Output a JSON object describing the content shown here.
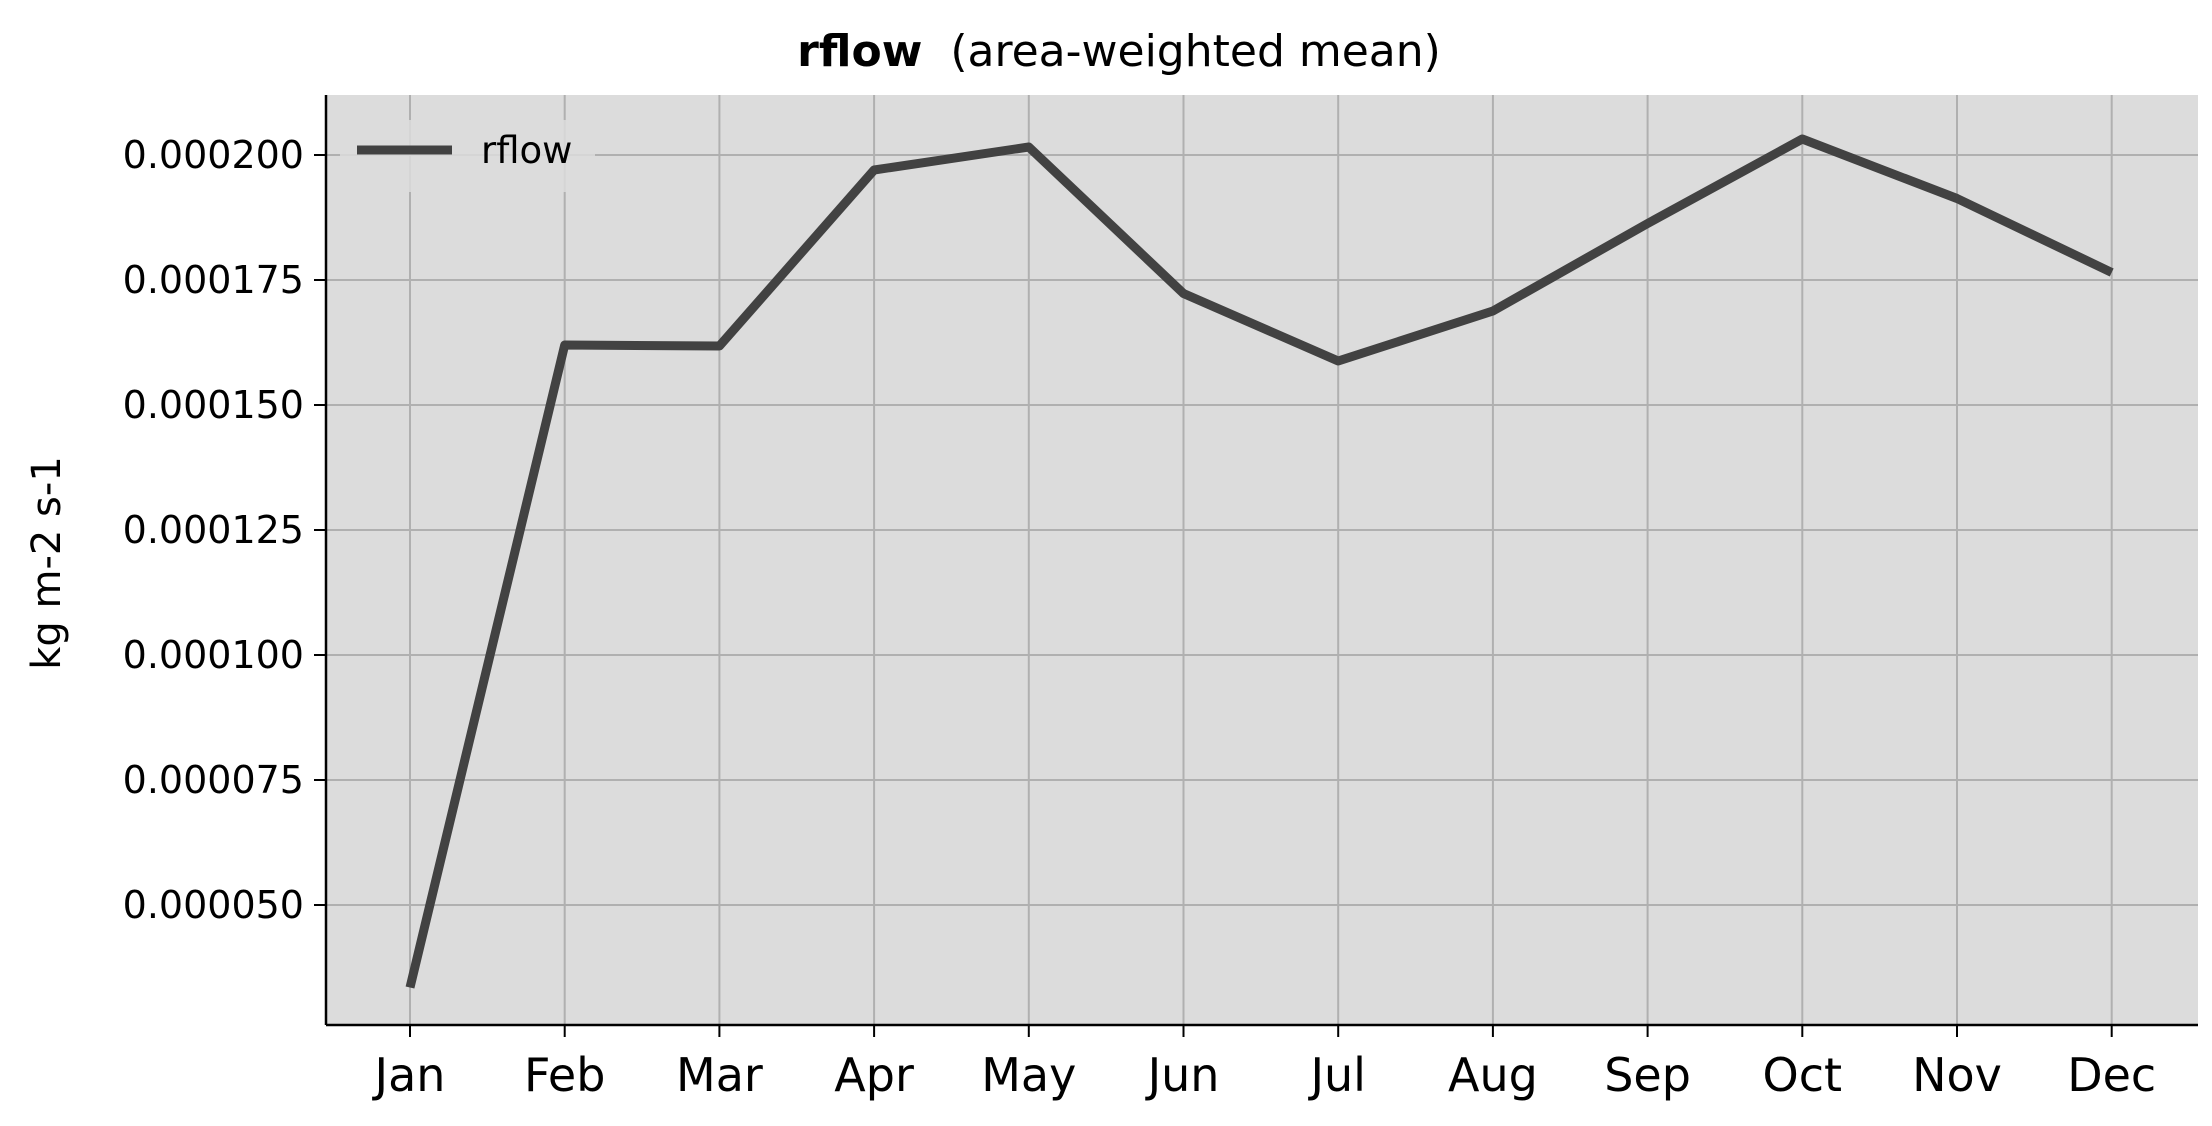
{
  "chart_data": {
    "type": "line",
    "title": "rflow",
    "subtitle": "(area-weighted mean)",
    "xlabel": "",
    "ylabel": "kg m-2 s-1",
    "categories": [
      "Jan",
      "Feb",
      "Mar",
      "Apr",
      "May",
      "Jun",
      "Jul",
      "Aug",
      "Sep",
      "Oct",
      "Nov",
      "Dec"
    ],
    "series": [
      {
        "name": "rflow",
        "color": "#424242",
        "values": [
          3.35e-05,
          0.000162,
          0.0001618,
          0.000197,
          0.0002016,
          0.0001723,
          0.0001588,
          0.0001688,
          0.0001863,
          0.0002032,
          0.0001913,
          0.0001765
        ]
      }
    ],
    "yticks": [
      "0.000050",
      "0.000075",
      "0.000100",
      "0.000125",
      "0.000150",
      "0.000175",
      "0.000200"
    ],
    "ylim": [
      2.6e-05,
      0.000212
    ],
    "grid": true,
    "legend_position": "top-left",
    "plot_background": "#dcdcdc",
    "grid_color": "#b0b0b0"
  }
}
